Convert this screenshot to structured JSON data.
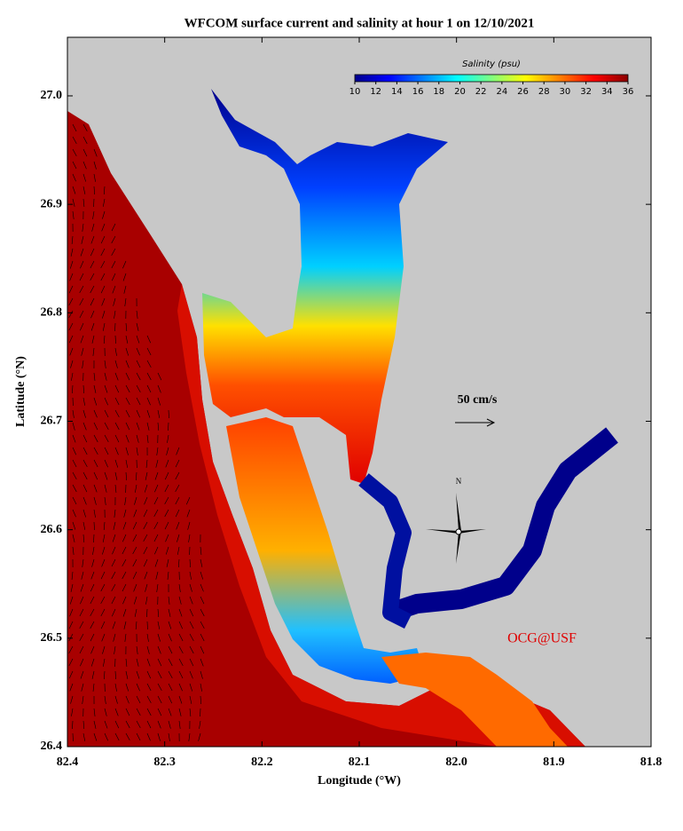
{
  "chart_data": {
    "type": "map",
    "title": "WFCOM surface current and salinity at hour 1 on 12/10/2021",
    "x_label": "Longitude (°W)",
    "y_label": "Latitude (°N)",
    "xlim": [
      82.4,
      81.8
    ],
    "xticks": [
      82.4,
      82.3,
      82.2,
      82.1,
      {
        "value": 82,
        "label": "82.0"
      },
      81.9,
      81.8
    ],
    "ylim": [
      26.4,
      27.054
    ],
    "yticks": [
      26.4,
      26.5,
      26.6,
      26.7,
      26.8,
      26.9,
      {
        "value": 27,
        "label": "27.0"
      }
    ],
    "colorbar": {
      "title": "Salinity (psu)",
      "lim": [
        10,
        36
      ],
      "ticks": [
        10,
        12,
        14,
        16,
        18,
        20,
        22,
        24,
        26,
        28,
        30,
        32,
        34,
        36
      ],
      "colormap": "jet"
    },
    "annotations": [
      "50 cm/s",
      "N",
      "OCG@USF"
    ]
  }
}
